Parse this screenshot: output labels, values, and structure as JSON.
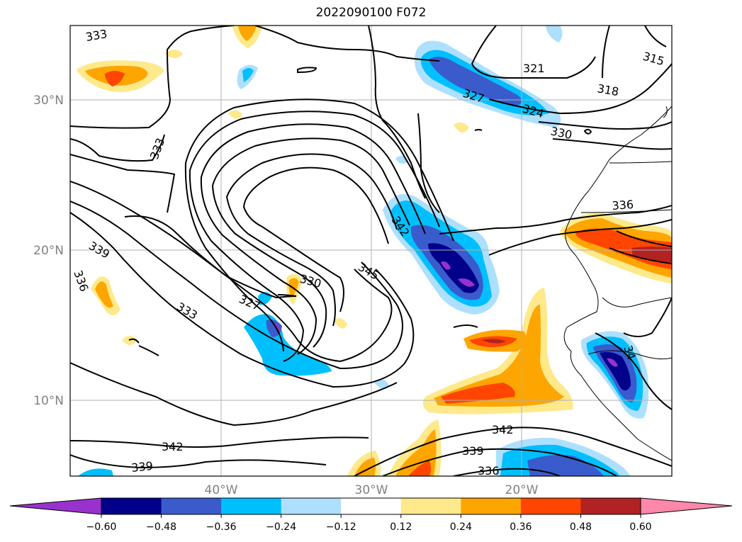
{
  "title": "2022090100 F072",
  "map": {
    "lat_labels": [
      "30°N",
      "20°N",
      "10°N"
    ],
    "lon_labels": [
      "40°W",
      "30°W",
      "20°W"
    ],
    "contour_labels": [
      "333",
      "333",
      "333",
      "339",
      "336",
      "333",
      "327",
      "330",
      "345",
      "342",
      "342",
      "339",
      "336",
      "321",
      "327",
      "324",
      "330",
      "318",
      "315",
      "336",
      "342",
      "339",
      "34"
    ]
  },
  "colorbar": {
    "ticks": [
      "−0.60",
      "−0.48",
      "−0.36",
      "−0.24",
      "−0.12",
      "0.12",
      "0.24",
      "0.36",
      "0.48",
      "0.60"
    ],
    "colors": [
      "#9932cc",
      "#00008b",
      "#3a5bcc",
      "#00bfff",
      "#addfff",
      "#ffffff",
      "#ffe98a",
      "#ffa500",
      "#ff4500",
      "#b22222",
      "#ff88aa"
    ]
  }
}
